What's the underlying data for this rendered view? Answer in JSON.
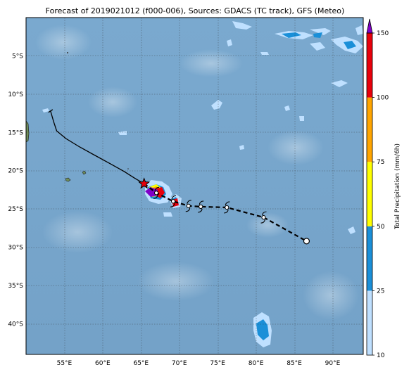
{
  "title": "Forecast of 2019021012 (f000-006), Sources: GDACS (TC track), GFS (Meteo)",
  "map": {
    "lon_range": [
      50,
      94
    ],
    "lat_range": [
      -44,
      0
    ],
    "lon_ticks": [
      55,
      60,
      65,
      70,
      75,
      80,
      85,
      90
    ],
    "lon_tick_labels": [
      "55°E",
      "60°E",
      "65°E",
      "70°E",
      "75°E",
      "80°E",
      "85°E",
      "90°E"
    ],
    "lat_ticks": [
      -5,
      -10,
      -15,
      -20,
      -25,
      -30,
      -35,
      -40
    ],
    "lat_tick_labels": [
      "5°S",
      "10°S",
      "15°S",
      "20°S",
      "25°S",
      "30°S",
      "35°S",
      "40°S"
    ],
    "ocean_color": "#78a6cc",
    "land_color": "#6f8f5a"
  },
  "colorbar": {
    "label": "Total Precipitation (mm/6h)",
    "levels": [
      10,
      25,
      50,
      75,
      100,
      150
    ],
    "tick_labels": [
      "10",
      "25",
      "50",
      "75",
      "100",
      "150"
    ],
    "colors": [
      "#bfe0ff",
      "#1a8fd8",
      "#ffff00",
      "#ffa500",
      "#e8000b"
    ],
    "extend_color": "#8000c8"
  },
  "chart_data": {
    "type": "map",
    "past_track": [
      [
        53.2,
        -12.2
      ],
      [
        53.6,
        -13.6
      ],
      [
        54.0,
        -14.8
      ],
      [
        55.2,
        -15.8
      ],
      [
        57.0,
        -16.9
      ],
      [
        59.0,
        -18.0
      ],
      [
        61.0,
        -19.1
      ],
      [
        62.8,
        -20.1
      ],
      [
        64.2,
        -21.0
      ],
      [
        65.4,
        -21.7
      ]
    ],
    "current_position": [
      65.4,
      -21.7
    ],
    "forecast_track": [
      [
        65.4,
        -21.7
      ],
      [
        67.0,
        -22.9
      ],
      [
        69.2,
        -24.0
      ],
      [
        71.2,
        -24.6
      ],
      [
        72.8,
        -24.7
      ],
      [
        76.2,
        -24.8
      ],
      [
        81.0,
        -26.1
      ],
      [
        86.6,
        -29.2
      ]
    ],
    "storm_symbols": [
      [
        67.0,
        -22.9
      ],
      [
        69.2,
        -24.0
      ],
      [
        71.2,
        -24.6
      ],
      [
        72.8,
        -24.7
      ],
      [
        76.2,
        -24.8
      ],
      [
        81.0,
        -26.1
      ]
    ],
    "final_position": [
      86.6,
      -29.2
    ]
  }
}
